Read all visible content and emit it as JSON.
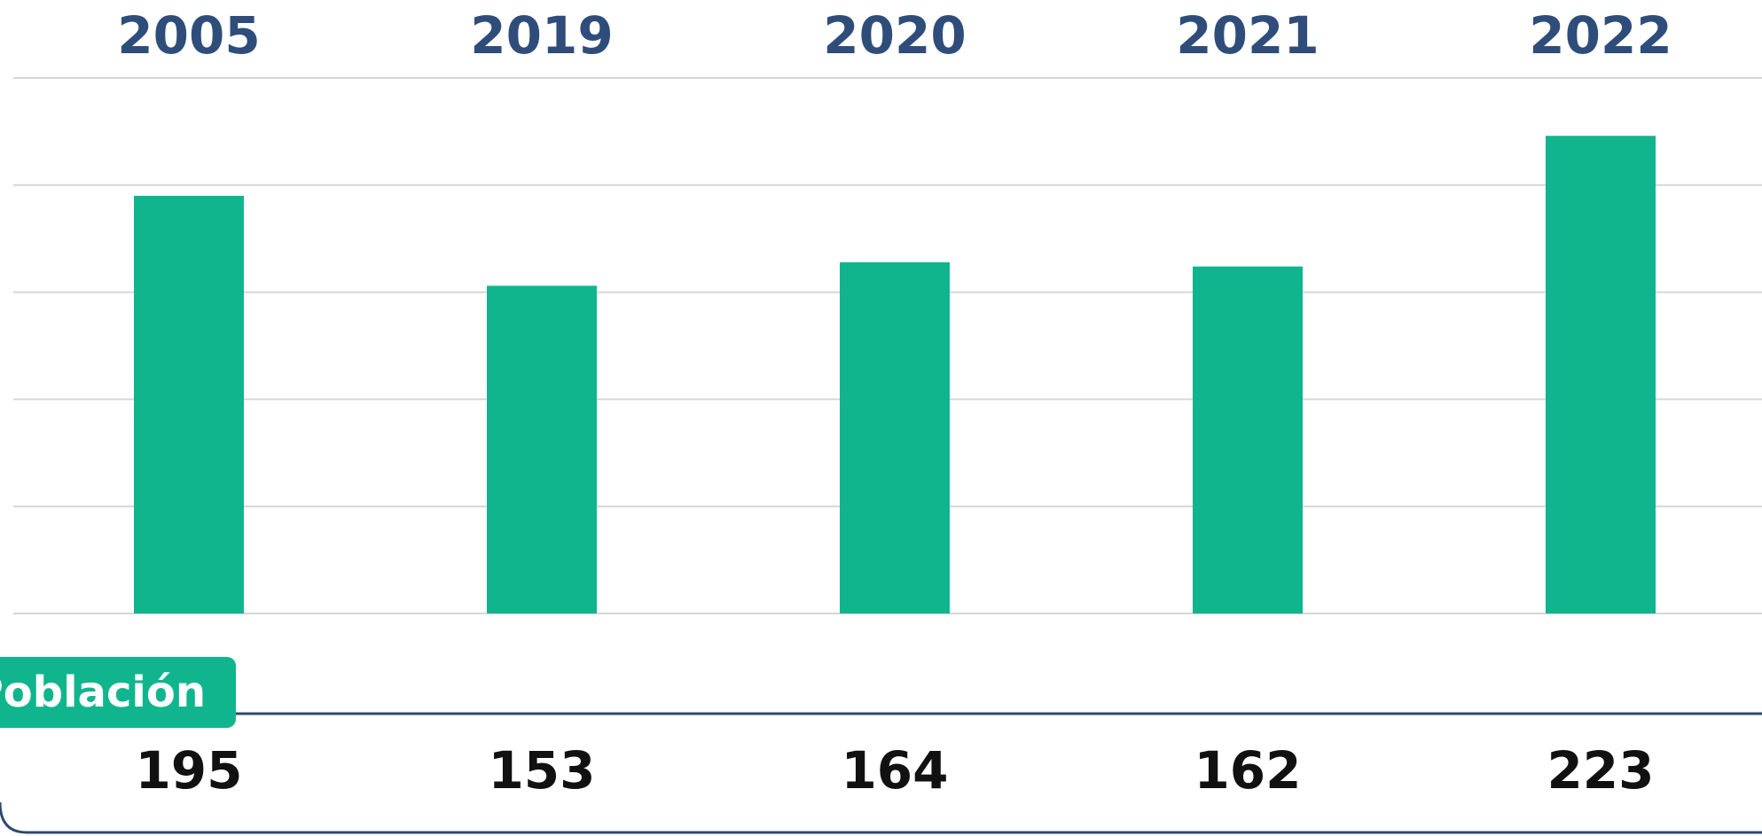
{
  "chart_data": {
    "type": "bar",
    "categories": [
      "2005",
      "2019",
      "2020",
      "2021",
      "2022"
    ],
    "values": [
      195,
      153,
      164,
      162,
      223
    ],
    "color": "#10b58e",
    "ylim": [
      0,
      250
    ],
    "yticks": [
      0,
      50,
      100,
      150,
      200,
      250
    ],
    "grid": true,
    "row_label": "Población"
  }
}
